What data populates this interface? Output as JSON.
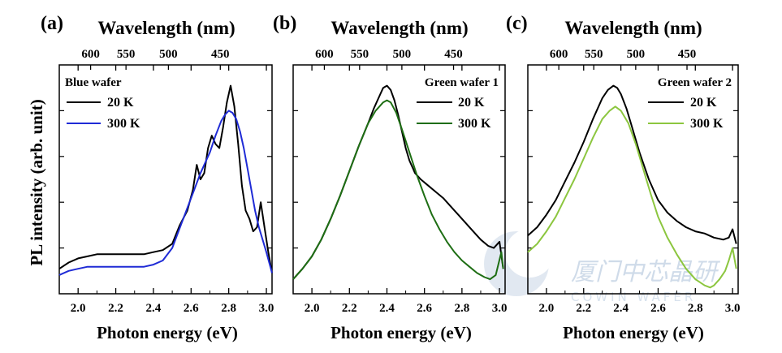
{
  "figure": {
    "ylabel": "PL intensity (arb. unit)",
    "watermark": {
      "text_cn": "厦门中芯晶研",
      "text_en": "COWIN WAFER"
    }
  },
  "chart_data": [
    {
      "type": "line",
      "panel_label": "(a)",
      "legend_title": "Blue wafer",
      "top_axis_label": "Wavelength (nm)",
      "top_ticks": [
        "600",
        "550",
        "500",
        "450"
      ],
      "xlabel": "Photon energy (eV)",
      "xticks": [
        "2.0",
        "2.2",
        "2.4",
        "2.6",
        "2.8",
        "3.0"
      ],
      "xlim": [
        1.9,
        3.03
      ],
      "ylabel": "PL intensity (arb. unit)",
      "ylim": [
        0,
        1.1
      ],
      "series": [
        {
          "name": "20 K",
          "color": "#000000",
          "x": [
            1.9,
            1.95,
            2.0,
            2.05,
            2.1,
            2.15,
            2.2,
            2.25,
            2.3,
            2.35,
            2.4,
            2.45,
            2.5,
            2.54,
            2.58,
            2.61,
            2.63,
            2.65,
            2.67,
            2.69,
            2.71,
            2.73,
            2.75,
            2.77,
            2.79,
            2.81,
            2.83,
            2.85,
            2.87,
            2.89,
            2.91,
            2.93,
            2.95,
            2.97,
            2.99,
            3.01,
            3.03
          ],
          "y": [
            0.12,
            0.15,
            0.17,
            0.18,
            0.19,
            0.19,
            0.19,
            0.19,
            0.19,
            0.19,
            0.2,
            0.21,
            0.24,
            0.33,
            0.4,
            0.5,
            0.62,
            0.55,
            0.58,
            0.7,
            0.76,
            0.72,
            0.7,
            0.8,
            0.92,
            1.0,
            0.9,
            0.72,
            0.52,
            0.4,
            0.36,
            0.3,
            0.32,
            0.44,
            0.32,
            0.2,
            0.1
          ]
        },
        {
          "name": "300 K",
          "color": "#1f2bd6",
          "x": [
            1.9,
            1.95,
            2.0,
            2.05,
            2.1,
            2.15,
            2.2,
            2.25,
            2.3,
            2.35,
            2.4,
            2.45,
            2.5,
            2.55,
            2.6,
            2.65,
            2.7,
            2.73,
            2.76,
            2.78,
            2.8,
            2.82,
            2.84,
            2.86,
            2.88,
            2.9,
            2.92,
            2.94,
            2.96,
            2.98,
            3.0,
            3.03
          ],
          "y": [
            0.09,
            0.11,
            0.12,
            0.13,
            0.13,
            0.13,
            0.13,
            0.13,
            0.13,
            0.13,
            0.14,
            0.16,
            0.22,
            0.34,
            0.46,
            0.58,
            0.68,
            0.76,
            0.83,
            0.86,
            0.88,
            0.87,
            0.84,
            0.78,
            0.7,
            0.6,
            0.5,
            0.4,
            0.32,
            0.26,
            0.2,
            0.1
          ]
        }
      ]
    },
    {
      "type": "line",
      "panel_label": "(b)",
      "legend_title": "Green wafer 1",
      "top_axis_label": "Wavelength (nm)",
      "top_ticks": [
        "600",
        "550",
        "500",
        "450"
      ],
      "xlabel": "Photon energy (eV)",
      "xticks": [
        "2.0",
        "2.2",
        "2.4",
        "2.6",
        "2.8",
        "3.0"
      ],
      "xlim": [
        1.9,
        3.03
      ],
      "ylim": [
        0,
        1.1
      ],
      "series": [
        {
          "name": "20 K",
          "color": "#000000",
          "x": [
            1.9,
            1.95,
            2.0,
            2.05,
            2.1,
            2.15,
            2.2,
            2.25,
            2.3,
            2.33,
            2.36,
            2.38,
            2.4,
            2.42,
            2.44,
            2.46,
            2.48,
            2.5,
            2.52,
            2.55,
            2.58,
            2.62,
            2.66,
            2.7,
            2.74,
            2.78,
            2.82,
            2.86,
            2.9,
            2.94,
            2.97,
            3.0,
            3.02
          ],
          "y": [
            0.07,
            0.12,
            0.18,
            0.26,
            0.36,
            0.47,
            0.59,
            0.71,
            0.82,
            0.89,
            0.95,
            0.99,
            1.0,
            0.98,
            0.93,
            0.86,
            0.78,
            0.7,
            0.64,
            0.58,
            0.55,
            0.52,
            0.49,
            0.46,
            0.42,
            0.38,
            0.34,
            0.3,
            0.26,
            0.23,
            0.22,
            0.25,
            0.12
          ]
        },
        {
          "name": "300 K",
          "color": "#1e6e14",
          "x": [
            1.9,
            1.95,
            2.0,
            2.05,
            2.1,
            2.15,
            2.2,
            2.25,
            2.3,
            2.34,
            2.38,
            2.4,
            2.42,
            2.45,
            2.48,
            2.52,
            2.56,
            2.6,
            2.64,
            2.68,
            2.72,
            2.76,
            2.8,
            2.84,
            2.88,
            2.92,
            2.95,
            2.98,
            3.01,
            3.02
          ],
          "y": [
            0.07,
            0.12,
            0.18,
            0.26,
            0.36,
            0.47,
            0.59,
            0.71,
            0.82,
            0.88,
            0.92,
            0.93,
            0.92,
            0.87,
            0.79,
            0.68,
            0.57,
            0.47,
            0.38,
            0.31,
            0.25,
            0.2,
            0.16,
            0.13,
            0.1,
            0.08,
            0.07,
            0.09,
            0.2,
            0.12
          ]
        }
      ]
    },
    {
      "type": "line",
      "panel_label": "(c)",
      "legend_title": "Green wafer 2",
      "top_axis_label": "Wavelength (nm)",
      "top_ticks": [
        "600",
        "550",
        "500",
        "450"
      ],
      "xlabel": "Photon energy (eV)",
      "xticks": [
        "2.0",
        "2.2",
        "2.4",
        "2.6",
        "2.8",
        "3.0"
      ],
      "xlim": [
        1.9,
        3.03
      ],
      "ylim": [
        0,
        1.1
      ],
      "series": [
        {
          "name": "20 K",
          "color": "#000000",
          "x": [
            1.9,
            1.95,
            2.0,
            2.05,
            2.1,
            2.15,
            2.2,
            2.25,
            2.3,
            2.33,
            2.36,
            2.38,
            2.4,
            2.43,
            2.46,
            2.5,
            2.55,
            2.6,
            2.65,
            2.7,
            2.75,
            2.8,
            2.85,
            2.9,
            2.95,
            2.98,
            3.0,
            3.02
          ],
          "y": [
            0.28,
            0.32,
            0.38,
            0.45,
            0.54,
            0.63,
            0.73,
            0.84,
            0.94,
            0.98,
            1.0,
            0.99,
            0.96,
            0.89,
            0.8,
            0.68,
            0.55,
            0.45,
            0.39,
            0.35,
            0.32,
            0.3,
            0.29,
            0.27,
            0.26,
            0.27,
            0.31,
            0.24
          ]
        },
        {
          "name": "300 K",
          "color": "#8cc63f",
          "x": [
            1.9,
            1.95,
            2.0,
            2.05,
            2.1,
            2.15,
            2.2,
            2.25,
            2.3,
            2.34,
            2.37,
            2.4,
            2.44,
            2.48,
            2.52,
            2.56,
            2.6,
            2.65,
            2.7,
            2.75,
            2.8,
            2.85,
            2.88,
            2.9,
            2.93,
            2.96,
            2.98,
            3.0,
            3.02
          ],
          "y": [
            0.2,
            0.24,
            0.3,
            0.37,
            0.46,
            0.55,
            0.65,
            0.75,
            0.84,
            0.88,
            0.9,
            0.88,
            0.82,
            0.72,
            0.6,
            0.48,
            0.37,
            0.27,
            0.19,
            0.12,
            0.07,
            0.04,
            0.03,
            0.04,
            0.07,
            0.11,
            0.16,
            0.22,
            0.12
          ]
        }
      ]
    }
  ]
}
